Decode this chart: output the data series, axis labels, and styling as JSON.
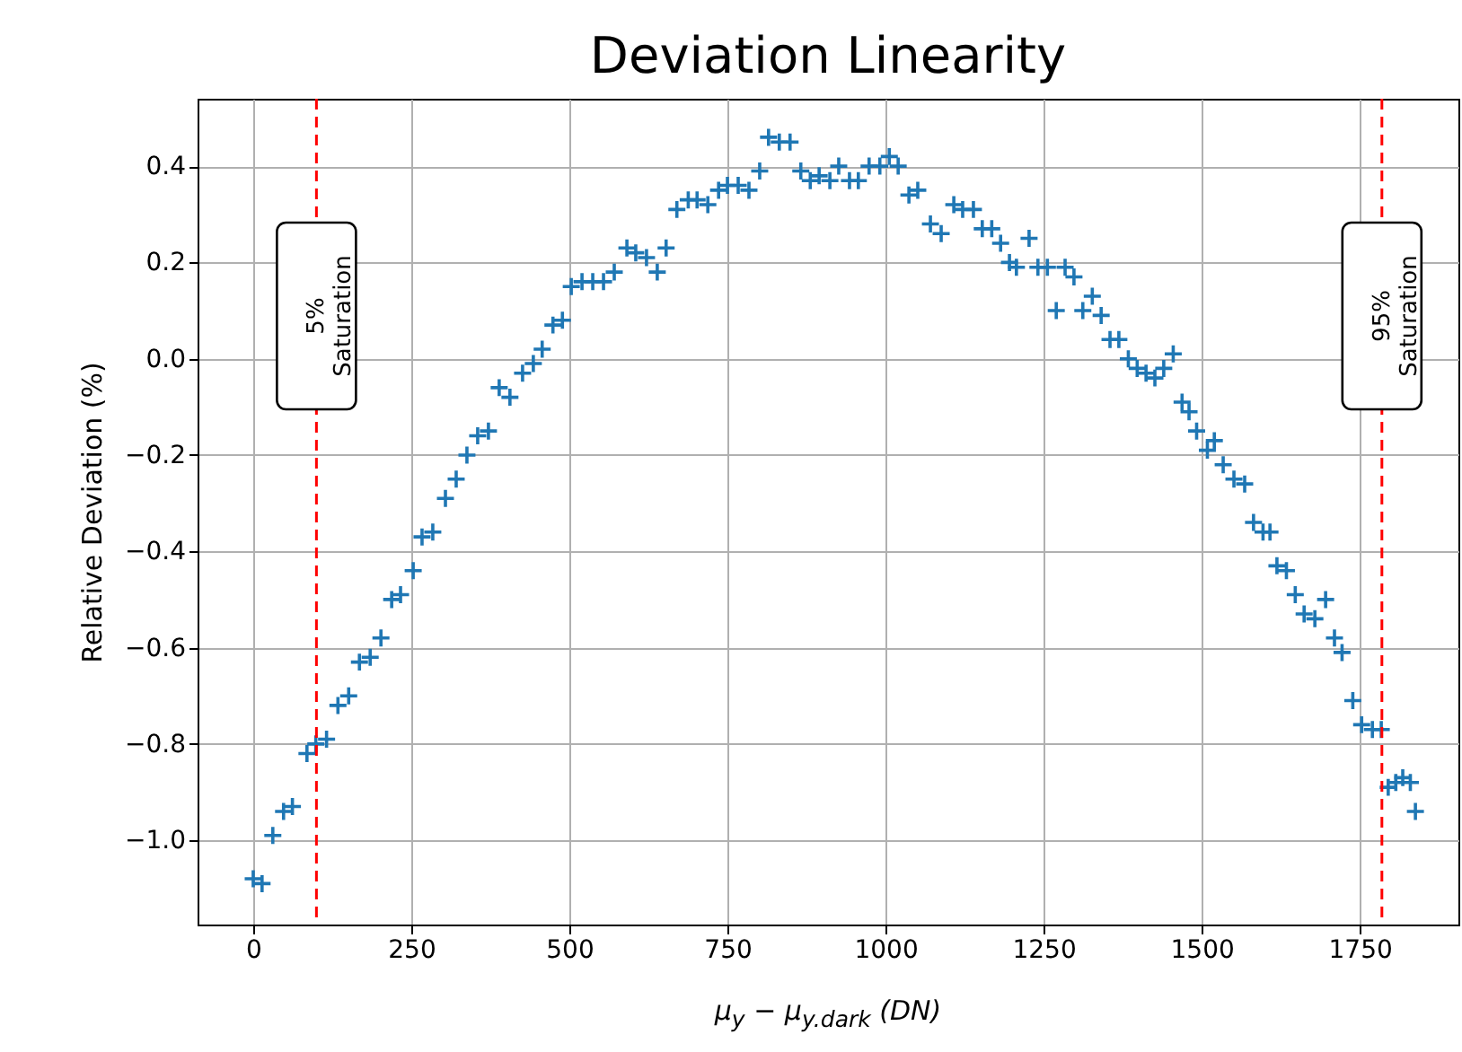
{
  "chart_data": {
    "type": "scatter",
    "title": "Deviation Linearity",
    "xlabel": "μ$_{y}$ − μ$_{y.dark}$ (DN)",
    "ylabel": "Relative Deviation (%)",
    "xlim": [
      -88,
      1906
    ],
    "ylim": [
      -1.175,
      0.54
    ],
    "xticks": [
      0,
      250,
      500,
      750,
      1000,
      1250,
      1500,
      1750
    ],
    "yticks": [
      {
        "value": -1.0,
        "label": "−1.0"
      },
      {
        "value": -0.8,
        "label": "−0.8"
      },
      {
        "value": -0.6,
        "label": "−0.6"
      },
      {
        "value": -0.4,
        "label": "−0.4"
      },
      {
        "value": -0.2,
        "label": "−0.2"
      },
      {
        "value": 0,
        "label": "0.0"
      },
      {
        "value": 0.2,
        "label": "0.2"
      },
      {
        "value": 0.4,
        "label": "0.4"
      }
    ],
    "grid": true,
    "marker": "cross",
    "ref_lines": [
      {
        "axis": "x",
        "value": 100,
        "label": "5%\nSaturation",
        "color": "#ff0000",
        "line_style": "dashed"
      },
      {
        "axis": "x",
        "value": 1785,
        "label": "95%\nSaturation",
        "color": "#ff0000",
        "line_style": "dashed"
      }
    ],
    "series": [
      {
        "color": "#1f77b4",
        "x": [
          0,
          14,
          31,
          48,
          62,
          85,
          99,
          116,
          134,
          151,
          168,
          185,
          202,
          219,
          233,
          253,
          267,
          284,
          304,
          321,
          338,
          355,
          372,
          389,
          406,
          426,
          443,
          457,
          474,
          489,
          503,
          520,
          537,
          554,
          571,
          591,
          605,
          622,
          639,
          653,
          670,
          688,
          702,
          719,
          736,
          750,
          767,
          784,
          801,
          815,
          832,
          849,
          866,
          881,
          895,
          912,
          926,
          943,
          957,
          974,
          991,
          1006,
          1020,
          1037,
          1051,
          1071,
          1088,
          1108,
          1122,
          1139,
          1153,
          1168,
          1182,
          1196,
          1207,
          1227,
          1241,
          1256,
          1270,
          1284,
          1298,
          1312,
          1327,
          1341,
          1355,
          1369,
          1384,
          1398,
          1412,
          1426,
          1440,
          1455,
          1469,
          1480,
          1492,
          1509,
          1520,
          1534,
          1551,
          1568,
          1582,
          1597,
          1608,
          1619,
          1634,
          1648,
          1662,
          1679,
          1696,
          1710,
          1722,
          1739,
          1753,
          1770,
          1784,
          1795,
          1807,
          1818,
          1830,
          1838
        ],
        "values": [
          -1.08,
          -1.09,
          -0.99,
          -0.94,
          -0.93,
          -0.82,
          -0.8,
          -0.79,
          -0.72,
          -0.7,
          -0.63,
          -0.62,
          -0.58,
          -0.5,
          -0.49,
          -0.44,
          -0.37,
          -0.36,
          -0.29,
          -0.25,
          -0.2,
          -0.16,
          -0.15,
          -0.06,
          -0.08,
          -0.03,
          -0.01,
          0.02,
          0.07,
          0.08,
          0.15,
          0.16,
          0.16,
          0.16,
          0.18,
          0.23,
          0.22,
          0.21,
          0.18,
          0.23,
          0.31,
          0.33,
          0.33,
          0.32,
          0.35,
          0.36,
          0.36,
          0.35,
          0.39,
          0.46,
          0.45,
          0.45,
          0.39,
          0.37,
          0.38,
          0.37,
          0.4,
          0.37,
          0.37,
          0.4,
          0.4,
          0.42,
          0.4,
          0.34,
          0.35,
          0.28,
          0.26,
          0.32,
          0.31,
          0.31,
          0.27,
          0.27,
          0.24,
          0.2,
          0.19,
          0.25,
          0.19,
          0.19,
          0.1,
          0.19,
          0.17,
          0.1,
          0.13,
          0.09,
          0.04,
          0.04,
          0.0,
          -0.02,
          -0.03,
          -0.04,
          -0.02,
          0.01,
          -0.09,
          -0.11,
          -0.15,
          -0.19,
          -0.17,
          -0.22,
          -0.25,
          -0.26,
          -0.34,
          -0.36,
          -0.36,
          -0.43,
          -0.44,
          -0.49,
          -0.53,
          -0.54,
          -0.5,
          -0.58,
          -0.61,
          -0.71,
          -0.76,
          -0.77,
          -0.77,
          -0.89,
          -0.88,
          -0.87,
          -0.88,
          -0.94
        ]
      }
    ]
  }
}
